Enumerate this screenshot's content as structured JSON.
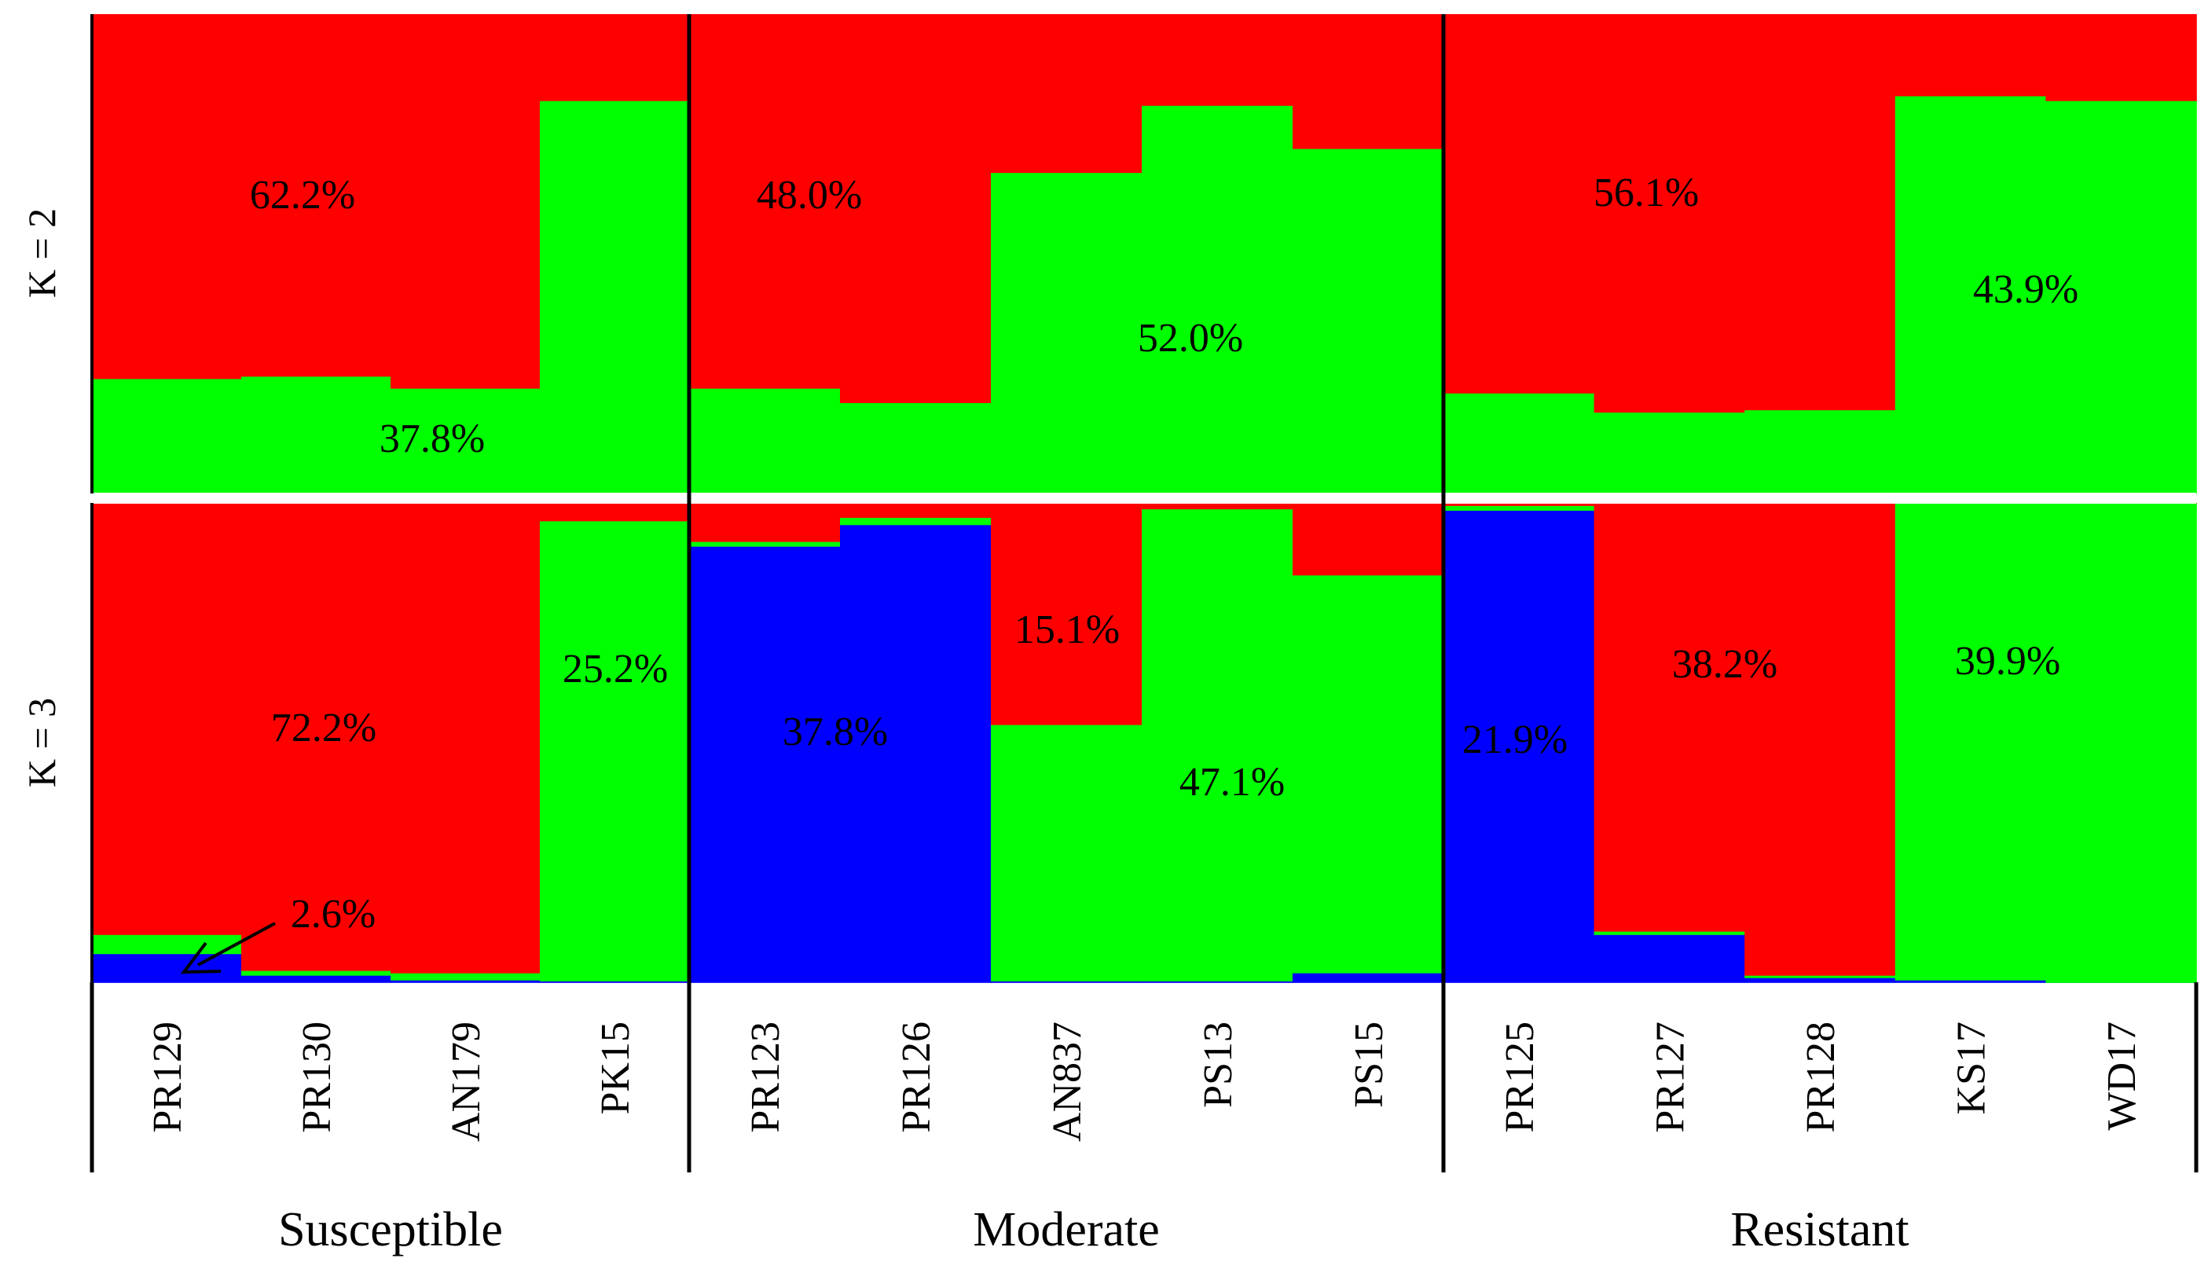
{
  "chart_data": {
    "type": "bar",
    "subtype": "stacked-structure-plot",
    "categories": [
      "PR129",
      "PR130",
      "AN179",
      "PK15",
      "PR123",
      "PR126",
      "AN837",
      "PS13",
      "PS15",
      "PR125",
      "PR127",
      "PR128",
      "KS17",
      "WD17"
    ],
    "groups": [
      {
        "name": "Susceptible",
        "members": [
          "PR129",
          "PR130",
          "AN179",
          "PK15"
        ]
      },
      {
        "name": "Moderate",
        "members": [
          "PR123",
          "PR126",
          "AN837",
          "PS13",
          "PS15"
        ]
      },
      {
        "name": "Resistant",
        "members": [
          "PR125",
          "PR127",
          "PR128",
          "KS17",
          "WD17"
        ]
      }
    ],
    "colors": {
      "blue": "#0000ff",
      "green": "#00ff00",
      "red": "#ff0000"
    },
    "ylim": [
      0,
      1
    ],
    "panels": [
      {
        "label": "K = 2",
        "series": [
          {
            "name": "green",
            "values": [
              0.24,
              0.245,
              0.22,
              0.82,
              0.22,
              0.19,
              0.67,
              0.81,
              0.72,
              0.21,
              0.17,
              0.175,
              0.83,
              0.82
            ]
          },
          {
            "name": "red",
            "values": [
              0.76,
              0.755,
              0.78,
              0.18,
              0.78,
              0.81,
              0.33,
              0.19,
              0.28,
              0.79,
              0.83,
              0.825,
              0.17,
              0.18
            ]
          }
        ],
        "annotations": [
          "62.2%",
          "37.8%",
          "48.0%",
          "52.0%",
          "56.1%",
          "43.9%"
        ]
      },
      {
        "label": "K = 3",
        "series": [
          {
            "name": "blue",
            "values": [
              0.06,
              0.015,
              0.005,
              0.003,
              0.91,
              0.955,
              0.003,
              0.003,
              0.02,
              0.985,
              0.1,
              0.01,
              0.005,
              0.0
            ]
          },
          {
            "name": "green",
            "values": [
              0.04,
              0.01,
              0.015,
              0.96,
              0.01,
              0.015,
              0.535,
              0.985,
              0.83,
              0.01,
              0.007,
              0.005,
              0.995,
              1.0
            ]
          },
          {
            "name": "red",
            "values": [
              0.9,
              0.975,
              0.98,
              0.037,
              0.08,
              0.03,
              0.462,
              0.012,
              0.15,
              0.005,
              0.893,
              0.985,
              0.0,
              0.0
            ]
          }
        ],
        "annotations": [
          "72.2%",
          "2.6%",
          "25.2%",
          "15.1%",
          "37.8%",
          "47.1%",
          "21.9%",
          "38.2%",
          "39.9%"
        ]
      }
    ]
  }
}
